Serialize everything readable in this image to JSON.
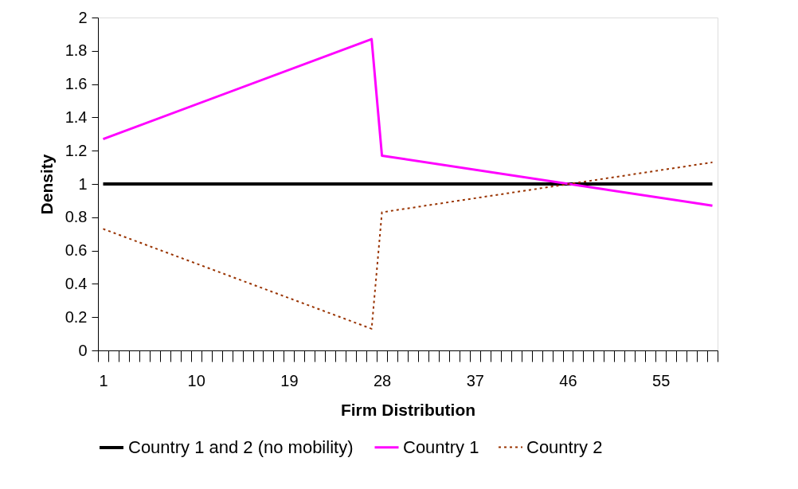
{
  "chart_data": {
    "type": "line",
    "xlabel": "Firm Distribution",
    "ylabel": "Density",
    "xlim": [
      0.5,
      60.5
    ],
    "ylim": [
      0,
      2
    ],
    "xticks": [
      {
        "value": 0.5,
        "label": null
      },
      {
        "value": 1,
        "label": "1"
      },
      {
        "value": 1.5,
        "label": null
      },
      {
        "value": 2.5,
        "label": null
      },
      {
        "value": 3.5,
        "label": null
      },
      {
        "value": 4.5,
        "label": null
      },
      {
        "value": 5.5,
        "label": null
      },
      {
        "value": 6.5,
        "label": null
      },
      {
        "value": 7.5,
        "label": null
      },
      {
        "value": 8.5,
        "label": null
      },
      {
        "value": 9.5,
        "label": null
      },
      {
        "value": 10,
        "label": "10"
      },
      {
        "value": 10.5,
        "label": null
      },
      {
        "value": 11.5,
        "label": null
      },
      {
        "value": 12.5,
        "label": null
      },
      {
        "value": 13.5,
        "label": null
      },
      {
        "value": 14.5,
        "label": null
      },
      {
        "value": 15.5,
        "label": null
      },
      {
        "value": 16.5,
        "label": null
      },
      {
        "value": 17.5,
        "label": null
      },
      {
        "value": 18.5,
        "label": null
      },
      {
        "value": 19,
        "label": "19"
      },
      {
        "value": 19.5,
        "label": null
      },
      {
        "value": 20.5,
        "label": null
      },
      {
        "value": 21.5,
        "label": null
      },
      {
        "value": 22.5,
        "label": null
      },
      {
        "value": 23.5,
        "label": null
      },
      {
        "value": 24.5,
        "label": null
      },
      {
        "value": 25.5,
        "label": null
      },
      {
        "value": 26.5,
        "label": null
      },
      {
        "value": 27.5,
        "label": null
      },
      {
        "value": 28,
        "label": "28"
      },
      {
        "value": 28.5,
        "label": null
      },
      {
        "value": 29.5,
        "label": null
      },
      {
        "value": 30.5,
        "label": null
      },
      {
        "value": 31.5,
        "label": null
      },
      {
        "value": 32.5,
        "label": null
      },
      {
        "value": 33.5,
        "label": null
      },
      {
        "value": 34.5,
        "label": null
      },
      {
        "value": 35.5,
        "label": null
      },
      {
        "value": 36.5,
        "label": null
      },
      {
        "value": 37,
        "label": "37"
      },
      {
        "value": 37.5,
        "label": null
      },
      {
        "value": 38.5,
        "label": null
      },
      {
        "value": 39.5,
        "label": null
      },
      {
        "value": 40.5,
        "label": null
      },
      {
        "value": 41.5,
        "label": null
      },
      {
        "value": 42.5,
        "label": null
      },
      {
        "value": 43.5,
        "label": null
      },
      {
        "value": 44.5,
        "label": null
      },
      {
        "value": 45.5,
        "label": null
      },
      {
        "value": 46,
        "label": "46"
      },
      {
        "value": 46.5,
        "label": null
      },
      {
        "value": 47.5,
        "label": null
      },
      {
        "value": 48.5,
        "label": null
      },
      {
        "value": 49.5,
        "label": null
      },
      {
        "value": 50.5,
        "label": null
      },
      {
        "value": 51.5,
        "label": null
      },
      {
        "value": 52.5,
        "label": null
      },
      {
        "value": 53.5,
        "label": null
      },
      {
        "value": 54.5,
        "label": null
      },
      {
        "value": 55,
        "label": "55"
      },
      {
        "value": 55.5,
        "label": null
      },
      {
        "value": 56.5,
        "label": null
      },
      {
        "value": 57.5,
        "label": null
      },
      {
        "value": 58.5,
        "label": null
      },
      {
        "value": 59.5,
        "label": null
      },
      {
        "value": 60.5,
        "label": null
      }
    ],
    "yticks": [
      0,
      0.2,
      0.4,
      0.6,
      0.8,
      1,
      1.2,
      1.4,
      1.6,
      1.8,
      2
    ],
    "grid": false,
    "legend": "bottom",
    "marker": "none",
    "series": [
      {
        "name": "Country 1 and 2 (no mobility)",
        "color": "#000000",
        "line_style": "solid",
        "x": [
          1,
          60
        ],
        "values": [
          1,
          1
        ]
      },
      {
        "name": "Country 1",
        "color": "#ff00ff",
        "line_style": "solid",
        "x": [
          1,
          27,
          28,
          60
        ],
        "values": [
          1.27,
          1.87,
          1.17,
          0.87
        ]
      },
      {
        "name": "Country 2",
        "color": "#993300",
        "line_style": "dotted",
        "x": [
          1,
          27,
          28,
          60
        ],
        "values": [
          0.73,
          0.13,
          0.83,
          1.13
        ]
      }
    ]
  }
}
